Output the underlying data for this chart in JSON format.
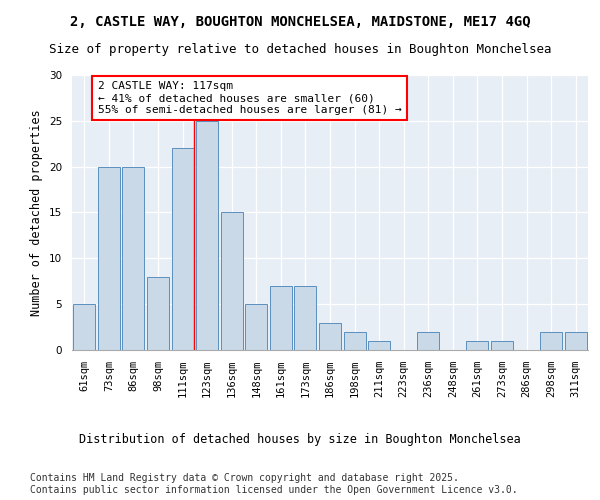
{
  "title": "2, CASTLE WAY, BOUGHTON MONCHELSEA, MAIDSTONE, ME17 4GQ",
  "subtitle": "Size of property relative to detached houses in Boughton Monchelsea",
  "xlabel": "Distribution of detached houses by size in Boughton Monchelsea",
  "ylabel": "Number of detached properties",
  "categories": [
    "61sqm",
    "73sqm",
    "86sqm",
    "98sqm",
    "111sqm",
    "123sqm",
    "136sqm",
    "148sqm",
    "161sqm",
    "173sqm",
    "186sqm",
    "198sqm",
    "211sqm",
    "223sqm",
    "236sqm",
    "248sqm",
    "261sqm",
    "273sqm",
    "286sqm",
    "298sqm",
    "311sqm"
  ],
  "values": [
    5,
    20,
    20,
    8,
    22,
    25,
    15,
    5,
    7,
    7,
    3,
    2,
    1,
    0,
    2,
    0,
    1,
    1,
    0,
    2,
    2
  ],
  "bar_color": "#c9d9e8",
  "bar_edge_color": "#5a8fbf",
  "highlight_index": 4,
  "annotation_text": "2 CASTLE WAY: 117sqm\n← 41% of detached houses are smaller (60)\n55% of semi-detached houses are larger (81) →",
  "annotation_box_color": "white",
  "annotation_box_edge_color": "red",
  "ylim": [
    0,
    30
  ],
  "yticks": [
    0,
    5,
    10,
    15,
    20,
    25,
    30
  ],
  "background_color": "#e8eef5",
  "footer": "Contains HM Land Registry data © Crown copyright and database right 2025.\nContains public sector information licensed under the Open Government Licence v3.0.",
  "title_fontsize": 10,
  "subtitle_fontsize": 9,
  "xlabel_fontsize": 8.5,
  "ylabel_fontsize": 8.5,
  "tick_fontsize": 7.5,
  "annotation_fontsize": 8
}
